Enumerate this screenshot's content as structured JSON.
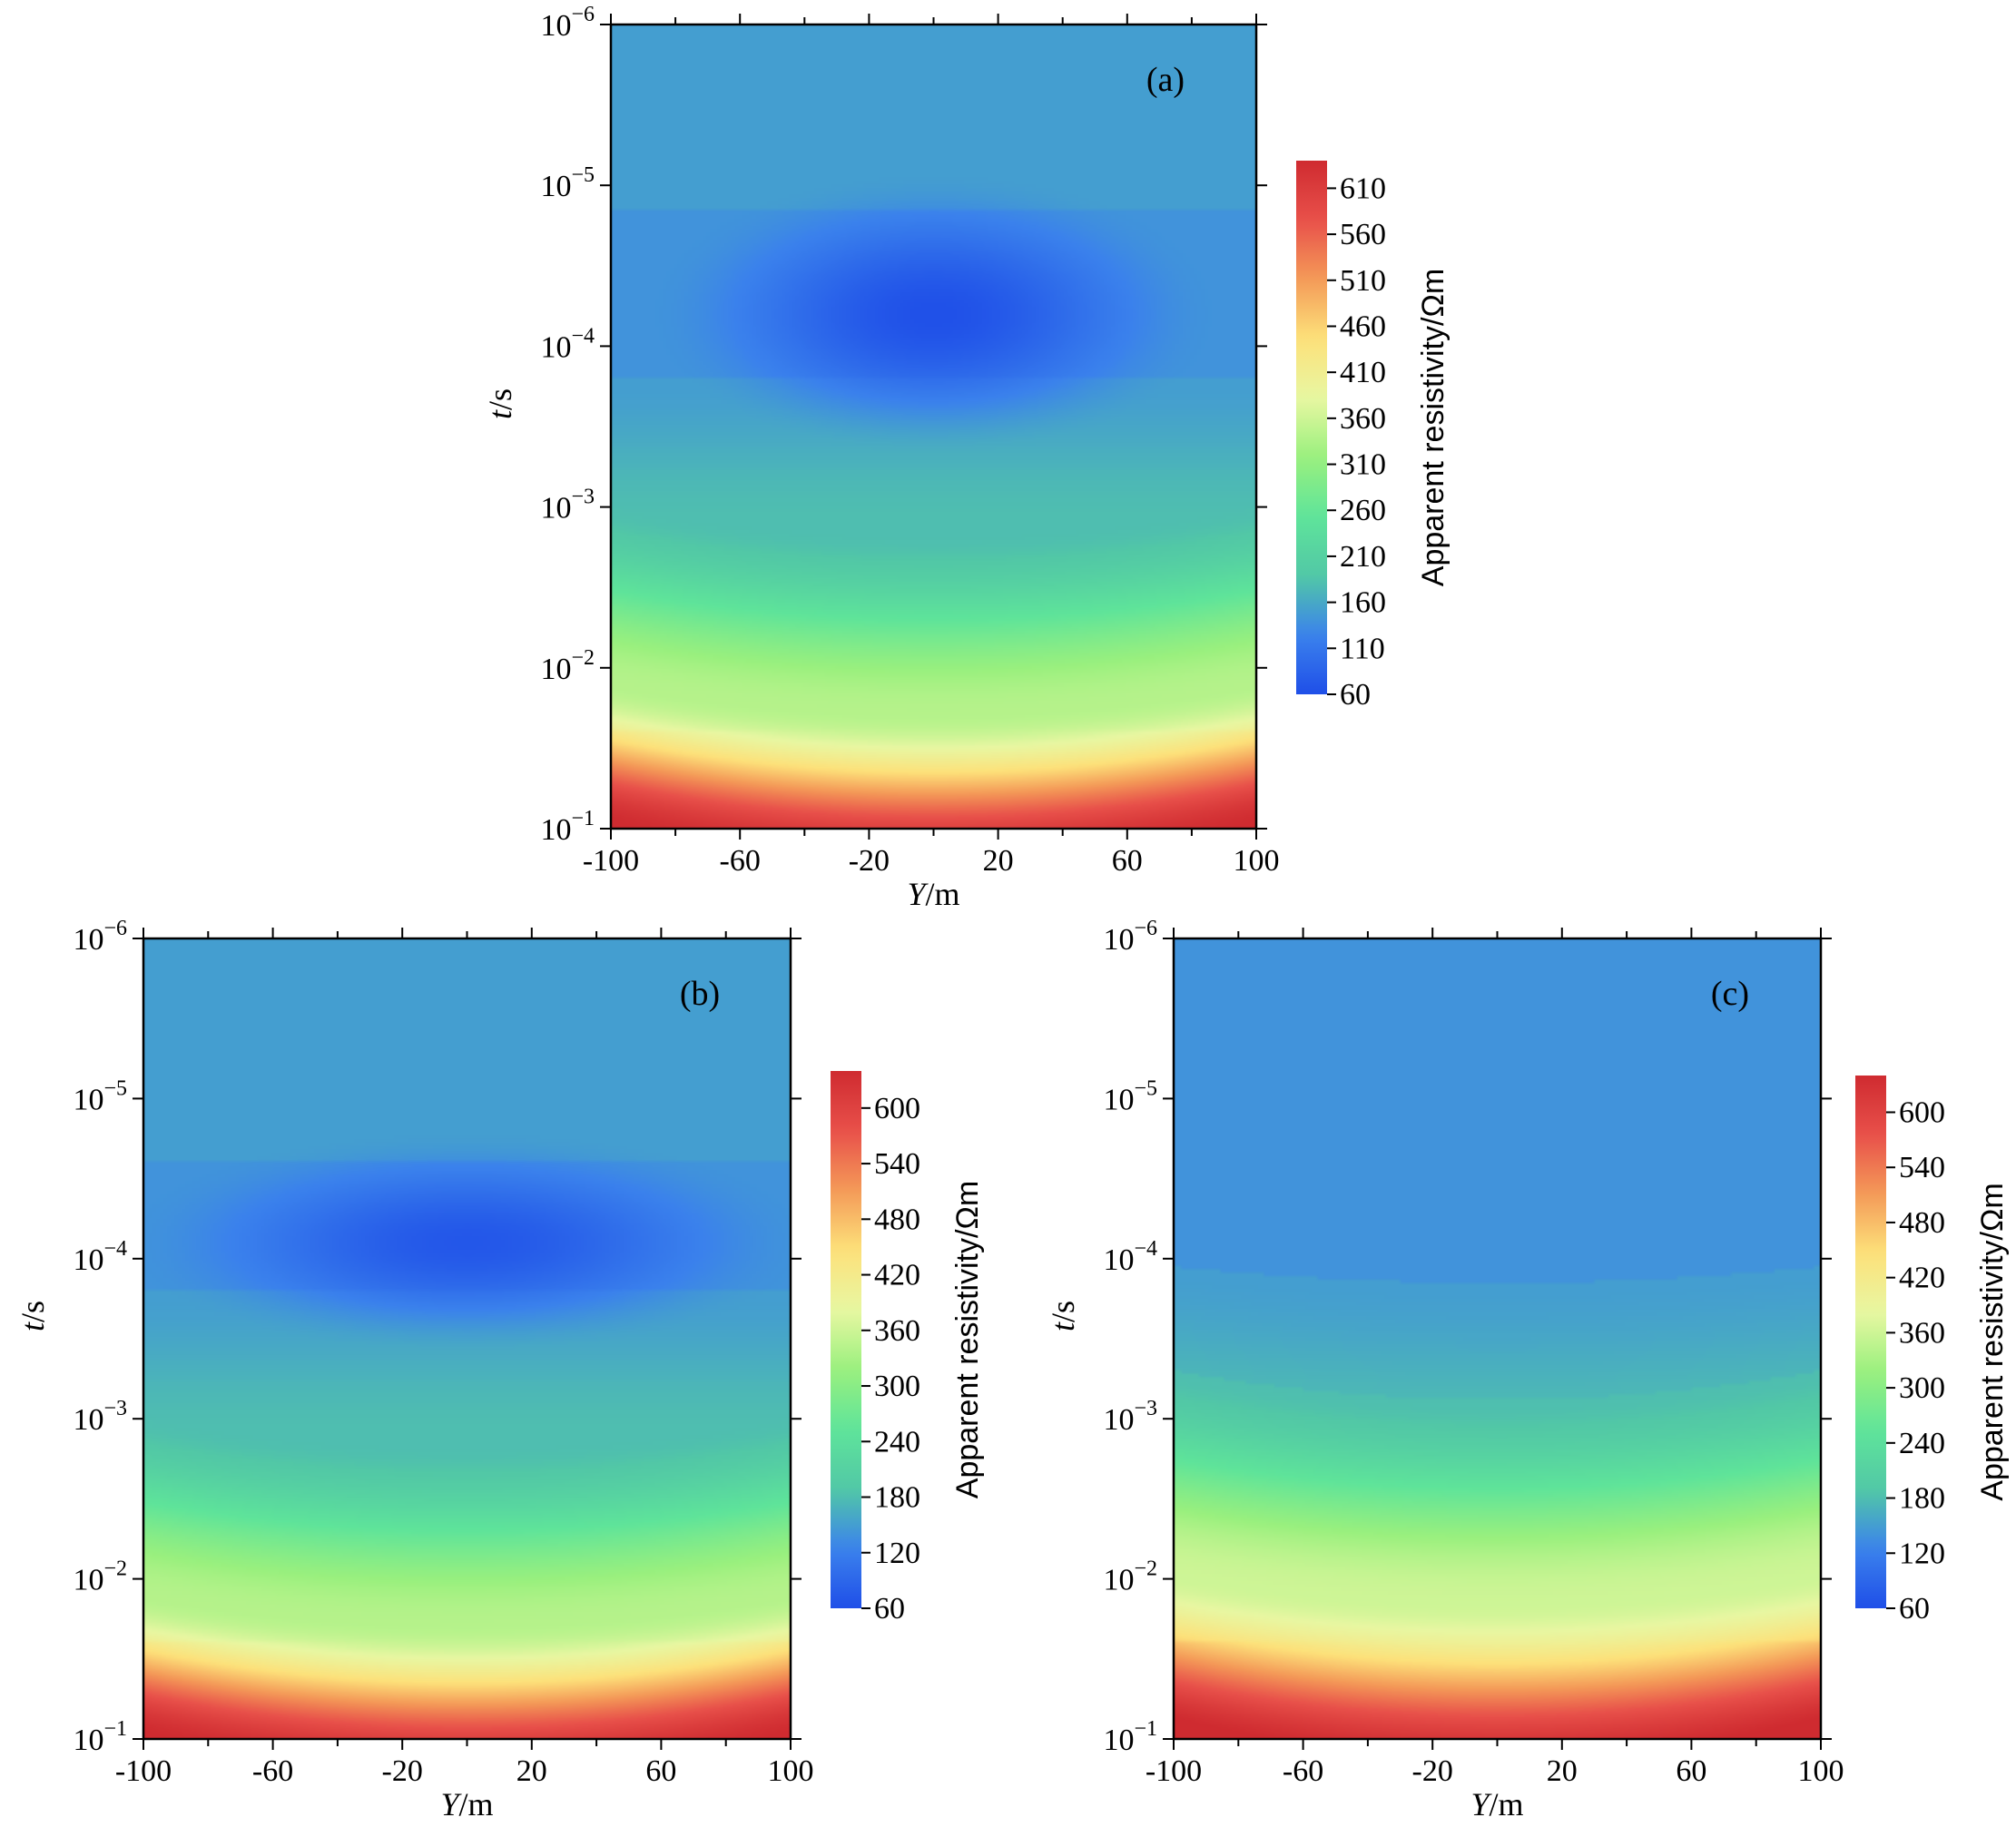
{
  "colors": {
    "cmap": [
      "#1f4fe8",
      "#3b82ec",
      "#52c8a6",
      "#5fe49a",
      "#9af07e",
      "#e8f7a2",
      "#fde17a",
      "#f49a58",
      "#e8504a",
      "#cf2b30"
    ],
    "axis": "#000000"
  },
  "chart_data": [
    {
      "type": "heatmap",
      "panel_label": "(a)",
      "xlabel": "Y/m",
      "ylabel": "t/s",
      "xlim": [
        -100,
        100
      ],
      "ylim": [
        1e-06,
        0.1
      ],
      "yscale": "log",
      "y_inverted": true,
      "x_ticks": [
        -100,
        -60,
        -20,
        20,
        60,
        100
      ],
      "x_tick_labels": [
        "-100",
        "-60",
        "-20",
        "20",
        "60",
        "100"
      ],
      "y_tick_exponents": [
        "-6",
        "-5",
        "-4",
        "-3",
        "-2",
        "-1"
      ],
      "colorbar": {
        "label": "Apparent resistivity/Ωm",
        "min": 60,
        "max": 640,
        "ticks": [
          60,
          110,
          160,
          210,
          260,
          310,
          360,
          410,
          460,
          510,
          560,
          610
        ],
        "tick_labels": [
          "60",
          "110",
          "160",
          "210",
          "260",
          "310",
          "360",
          "410",
          "460",
          "510",
          "560",
          "610"
        ]
      },
      "field": {
        "background_upper": 150,
        "shallow_band_value": 140,
        "shallow_band_top_log10": -4.85,
        "anomaly": {
          "min": 62,
          "center_y": 0,
          "center_t_log10": -4.2,
          "half_width_y": 70,
          "half_width_log10": 0.7
        },
        "deep_rise": {
          "from_log10": -3.0,
          "to_log10": -1.0,
          "value_mid": 340,
          "value_end": 630
        }
      }
    },
    {
      "type": "heatmap",
      "panel_label": "(b)",
      "xlabel": "Y/m",
      "ylabel": "t/s",
      "xlim": [
        -100,
        100
      ],
      "ylim": [
        1e-06,
        0.1
      ],
      "yscale": "log",
      "y_inverted": true,
      "x_ticks": [
        -100,
        -60,
        -20,
        20,
        60,
        100
      ],
      "x_tick_labels": [
        "-100",
        "-60",
        "-20",
        "20",
        "60",
        "100"
      ],
      "y_tick_exponents": [
        "-6",
        "-5",
        "-4",
        "-3",
        "-2",
        "-1"
      ],
      "colorbar": {
        "label": "Apparent resistivity/Ωm",
        "min": 60,
        "max": 640,
        "ticks": [
          60,
          120,
          180,
          240,
          300,
          360,
          420,
          480,
          540,
          600
        ],
        "tick_labels": [
          "60",
          "120",
          "180",
          "240",
          "300",
          "360",
          "420",
          "480",
          "540",
          "600"
        ]
      },
      "field": {
        "background_upper": 150,
        "shallow_band_value": 140,
        "shallow_band_top_log10": -4.6,
        "anomaly": {
          "min": 70,
          "center_y": 0,
          "center_t_log10": -4.1,
          "half_width_y": 85,
          "half_width_log10": 0.55
        },
        "deep_rise": {
          "from_log10": -3.0,
          "to_log10": -1.0,
          "value_mid": 340,
          "value_end": 630
        }
      }
    },
    {
      "type": "heatmap",
      "panel_label": "(c)",
      "xlabel": "Y/m",
      "ylabel": "t/s",
      "xlim": [
        -100,
        100
      ],
      "ylim": [
        1e-06,
        0.1
      ],
      "yscale": "log",
      "y_inverted": true,
      "x_ticks": [
        -100,
        -60,
        -20,
        20,
        60,
        100
      ],
      "x_tick_labels": [
        "-100",
        "-60",
        "-20",
        "20",
        "60",
        "100"
      ],
      "y_tick_exponents": [
        "-6",
        "-5",
        "-4",
        "-3",
        "-2",
        "-1"
      ],
      "colorbar": {
        "label": "Apparent resistivity/Ωm",
        "min": 60,
        "max": 640,
        "ticks": [
          60,
          120,
          180,
          240,
          300,
          360,
          420,
          480,
          540,
          600
        ],
        "tick_labels": [
          "60",
          "120",
          "180",
          "240",
          "300",
          "360",
          "420",
          "480",
          "540",
          "600"
        ]
      },
      "field": {
        "background_upper": 140,
        "shallow_band_value": 140,
        "shallow_band_top_log10": -6.0,
        "shallow_band_bottom_edge_log10": -3.95,
        "shallow_band_bottom_edge_center_log10": -3.85,
        "anomaly": null,
        "deep_rise": {
          "from_log10": -3.3,
          "to_log10": -1.0,
          "value_mid": 360,
          "value_end": 640
        }
      }
    }
  ]
}
